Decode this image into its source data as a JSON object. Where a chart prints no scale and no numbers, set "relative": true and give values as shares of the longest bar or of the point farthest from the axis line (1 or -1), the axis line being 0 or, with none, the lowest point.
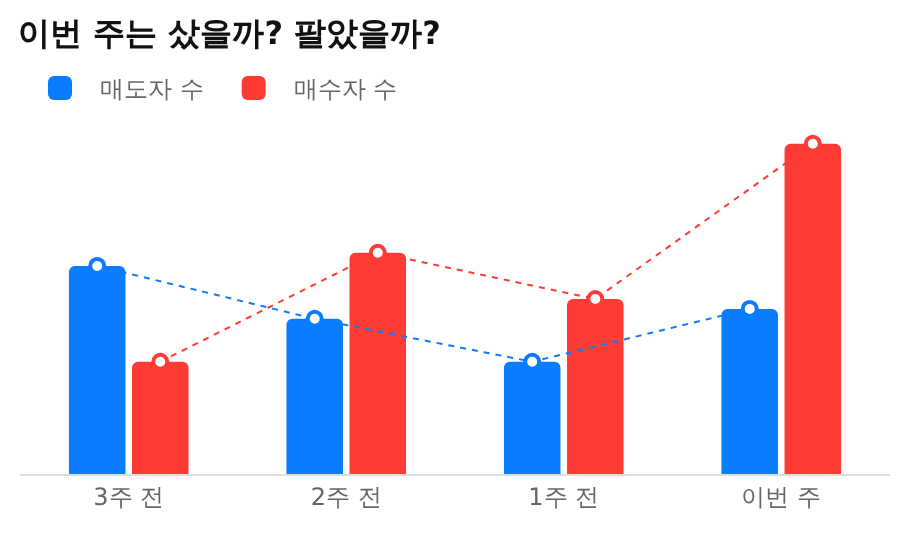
{
  "chart_data": {
    "type": "bar",
    "title": "이번 주는 샀을까? 팔았을까?",
    "relative": true,
    "categories": [
      "3주 전",
      "2주 전",
      "1주 전",
      "이번 주"
    ],
    "series": [
      {
        "name": "매도자 수",
        "color": "#0a7cff",
        "values": [
          0.63,
          0.47,
          0.34,
          0.5
        ]
      },
      {
        "name": "매수자 수",
        "color": "#ff3b36",
        "values": [
          0.34,
          0.67,
          0.53,
          1.0
        ]
      },
      {
        "type": "line",
        "color": "#0a7cff",
        "values": [
          0.63,
          0.47,
          0.34,
          0.5
        ],
        "line_style": "dotted",
        "marker": "circle"
      },
      {
        "type": "line",
        "color": "#ff3b36",
        "values": [
          0.34,
          0.67,
          0.53,
          1.0
        ],
        "line_style": "dotted",
        "marker": "circle"
      }
    ],
    "legend": "top left"
  }
}
